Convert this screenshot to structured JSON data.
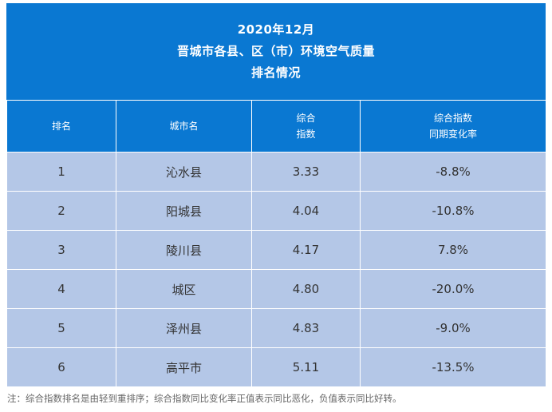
{
  "title": {
    "line1": "2020年12月",
    "line2": "晋城市各县、区（市）环境空气质量",
    "line3": "排名情况"
  },
  "table": {
    "headers": {
      "rank": "排名",
      "city": "城市名",
      "index_line1": "综合",
      "index_line2": "指数",
      "change_line1": "综合指数",
      "change_line2": "同期变化率"
    },
    "rows": [
      {
        "rank": "1",
        "city": "沁水县",
        "index": "3.33",
        "change": "-8.8%"
      },
      {
        "rank": "2",
        "city": "阳城县",
        "index": "4.04",
        "change": "-10.8%"
      },
      {
        "rank": "3",
        "city": "陵川县",
        "index": "4.17",
        "change": "7.8%"
      },
      {
        "rank": "4",
        "city": "城区",
        "index": "4.80",
        "change": "-20.0%"
      },
      {
        "rank": "5",
        "city": "泽州县",
        "index": "4.83",
        "change": "-9.0%"
      },
      {
        "rank": "6",
        "city": "高平市",
        "index": "5.11",
        "change": "-13.5%"
      }
    ]
  },
  "footnote": "注：综合指数排名是由轻到重排序；综合指数同比变化率正值表示同比恶化，负值表示同比好转。",
  "colors": {
    "header_blue": "#0a78d2",
    "row_blue": "#b4c7e7"
  }
}
